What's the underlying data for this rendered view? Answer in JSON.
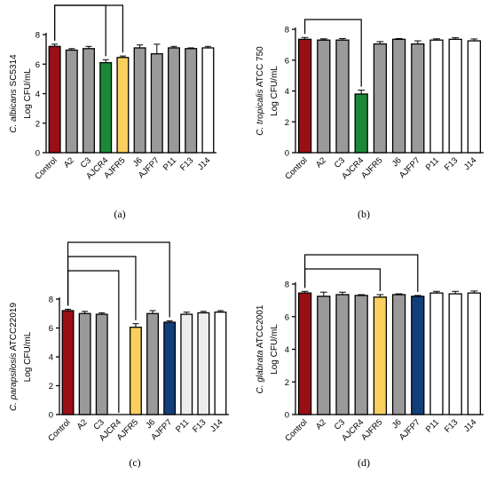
{
  "colors": {
    "control": "#9a0f16",
    "gray": "#9a9a9a",
    "green": "#1a8a3a",
    "yellow": "#f9d060",
    "blue": "#123f7a",
    "white": "#ffffff",
    "lightgray": "#ececec"
  },
  "chart_data": [
    {
      "type": "bar",
      "panel": "(a)",
      "ylabel_italic": "C. albicans",
      "ylabel_rest": " SC5314",
      "ylabel2": "Log CFU/mL",
      "ylim": [
        0,
        8
      ],
      "yticks": [
        "0",
        "2",
        "4",
        "6",
        "8"
      ],
      "categories": [
        "Control",
        "A2",
        "C3",
        "AJCR4",
        "AJFR5",
        "J6",
        "AJFP7",
        "P11",
        "F13",
        "J14"
      ],
      "values": [
        7.2,
        6.95,
        7.05,
        6.1,
        6.45,
        7.1,
        6.7,
        7.1,
        7.05,
        7.1
      ],
      "errors": [
        0.15,
        0.1,
        0.15,
        0.2,
        0.1,
        0.2,
        0.65,
        0.1,
        0.05,
        0.1
      ],
      "bar_colors": [
        "control",
        "gray",
        "gray",
        "green",
        "yellow",
        "gray",
        "gray",
        "gray",
        "gray",
        "white"
      ],
      "comparisons": [
        [
          0,
          3
        ],
        [
          0,
          4
        ]
      ]
    },
    {
      "type": "bar",
      "panel": "(b)",
      "ylabel_italic": "C. tropicalis",
      "ylabel_rest": " ATCC 750",
      "ylabel2": "Log CFU/mL",
      "ylim": [
        0,
        8
      ],
      "yticks": [
        "0",
        "2",
        "4",
        "6",
        "8"
      ],
      "categories": [
        "Control",
        "A2",
        "C3",
        "AJCR4",
        "AJFR5",
        "J6",
        "AJFP7",
        "P11",
        "F13",
        "J14"
      ],
      "values": [
        7.35,
        7.3,
        7.3,
        3.8,
        7.05,
        7.35,
        7.05,
        7.3,
        7.35,
        7.25
      ],
      "errors": [
        0.12,
        0.08,
        0.1,
        0.25,
        0.15,
        0.05,
        0.2,
        0.08,
        0.1,
        0.12
      ],
      "bar_colors": [
        "control",
        "gray",
        "gray",
        "green",
        "gray",
        "gray",
        "gray",
        "white",
        "white",
        "white"
      ],
      "comparisons": [
        [
          0,
          3
        ]
      ]
    },
    {
      "type": "bar",
      "panel": "(c)",
      "ylabel_italic": "C. parapsilosis",
      "ylabel_rest": " ATCC22019",
      "ylabel2": "Log CFU/mL",
      "ylim": [
        0,
        8
      ],
      "yticks": [
        "0",
        "2",
        "4",
        "6",
        "8"
      ],
      "categories": [
        "Control",
        "A2",
        "C3",
        "AJCR4",
        "AJFR5",
        "J6",
        "AJFP7",
        "P11",
        "F13",
        "J14"
      ],
      "values": [
        7.2,
        7.0,
        6.95,
        0,
        6.05,
        7.0,
        6.4,
        6.95,
        7.05,
        7.1
      ],
      "errors": [
        0.1,
        0.15,
        0.1,
        0,
        0.25,
        0.2,
        0.1,
        0.15,
        0.1,
        0.1
      ],
      "bar_colors": [
        "control",
        "gray",
        "gray",
        "white",
        "yellow",
        "gray",
        "blue",
        "lightgray",
        "lightgray",
        "white"
      ],
      "comparisons": [
        [
          0,
          3
        ],
        [
          0,
          4
        ],
        [
          0,
          6
        ]
      ]
    },
    {
      "type": "bar",
      "panel": "(d)",
      "ylabel_italic": "C. glabrata",
      "ylabel_rest": " ATCC2001",
      "ylabel2": "Log CFU/mL",
      "ylim": [
        0,
        8
      ],
      "yticks": [
        "0",
        "2",
        "4",
        "6",
        "8"
      ],
      "categories": [
        "Control",
        "A2",
        "C3",
        "AJCR4",
        "AJFR5",
        "J6",
        "AJFP7",
        "P11",
        "F13",
        "J14"
      ],
      "values": [
        7.45,
        7.25,
        7.35,
        7.3,
        7.2,
        7.35,
        7.25,
        7.45,
        7.4,
        7.45
      ],
      "errors": [
        0.1,
        0.25,
        0.15,
        0.05,
        0.15,
        0.05,
        0.05,
        0.1,
        0.15,
        0.12
      ],
      "bar_colors": [
        "control",
        "gray",
        "gray",
        "gray",
        "yellow",
        "gray",
        "blue",
        "white",
        "white",
        "white"
      ],
      "comparisons": [
        [
          0,
          4
        ],
        [
          0,
          6
        ]
      ]
    }
  ]
}
